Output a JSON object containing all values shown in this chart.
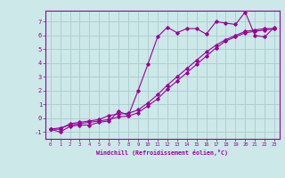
{
  "xlabel": "Windchill (Refroidissement éolien,°C)",
  "x_values": [
    0,
    1,
    2,
    3,
    4,
    5,
    6,
    7,
    8,
    9,
    10,
    11,
    12,
    13,
    14,
    15,
    16,
    17,
    18,
    19,
    20,
    21,
    22,
    23
  ],
  "line1": [
    -0.8,
    -1.0,
    -0.6,
    -0.5,
    -0.5,
    -0.3,
    -0.2,
    0.5,
    0.2,
    2.0,
    3.9,
    5.9,
    6.6,
    6.2,
    6.5,
    6.5,
    6.1,
    7.0,
    6.9,
    6.8,
    7.7,
    6.0,
    5.9,
    6.6
  ],
  "line2": [
    -0.8,
    -0.8,
    -0.4,
    -0.3,
    -0.2,
    -0.1,
    0.2,
    0.3,
    0.35,
    0.6,
    1.1,
    1.7,
    2.4,
    3.0,
    3.6,
    4.2,
    4.8,
    5.3,
    5.7,
    6.0,
    6.3,
    6.4,
    6.5,
    6.5
  ],
  "line3": [
    -0.8,
    -0.7,
    -0.5,
    -0.4,
    -0.3,
    -0.2,
    -0.1,
    0.1,
    0.15,
    0.4,
    0.9,
    1.4,
    2.1,
    2.7,
    3.3,
    3.9,
    4.5,
    5.1,
    5.6,
    5.9,
    6.2,
    6.3,
    6.4,
    6.5
  ],
  "line_color": "#990099",
  "bg_color": "#cce8e8",
  "grid_color": "#aacccc",
  "ylim": [
    -1.5,
    7.8
  ],
  "xlim": [
    -0.5,
    23.5
  ],
  "yticks": [
    -1,
    0,
    1,
    2,
    3,
    4,
    5,
    6,
    7
  ],
  "xticks": [
    0,
    1,
    2,
    3,
    4,
    5,
    6,
    7,
    8,
    9,
    10,
    11,
    12,
    13,
    14,
    15,
    16,
    17,
    18,
    19,
    20,
    21,
    22,
    23
  ]
}
